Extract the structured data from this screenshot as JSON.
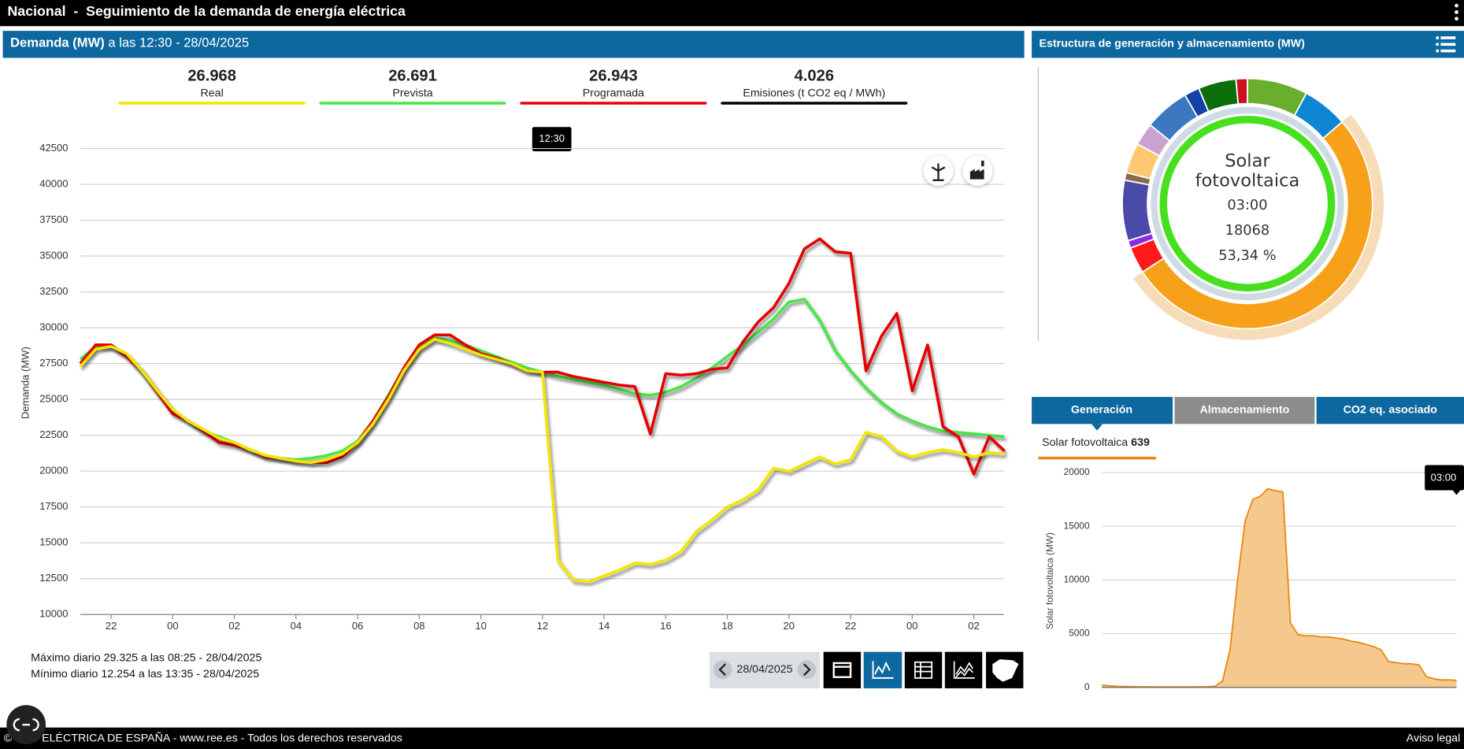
{
  "header": {
    "title": "Nacional  -  Seguimiento de la demanda de energía eléctrica"
  },
  "demand_panel": {
    "title": "Demanda (MW)",
    "subtitle": "a las 12:30 - 28/04/2025",
    "tooltip": "12:30"
  },
  "emissions": {
    "value": "4.026",
    "label": "Emisiones (t CO2 eq / MWh)",
    "color": "#000000"
  },
  "stats": [
    "Máximo diario 29.325 a las 08:25 - 28/04/2025",
    "Mínimo diario 12.254 a las 13:35 - 28/04/2025"
  ],
  "date_picker": "28/04/2025",
  "structure_panel": {
    "title": "Estructura de generación y almacenamiento (MW)"
  },
  "tabs": [
    "Generación",
    "Almacenamiento",
    "CO2 eq. asociado"
  ],
  "selected": {
    "label": "Solar fotovoltaica",
    "value": "639",
    "tooltip": "03:00"
  },
  "footer": {
    "left": "© RED ELÉCTRICA DE ESPAÑA - www.ree.es - Todos los derechos reservados",
    "right": "Aviso legal"
  },
  "chart_data": [
    {
      "type": "line",
      "ylabel": "Demanda (MW)",
      "x": [
        21,
        21.5,
        22,
        22.5,
        23,
        23.5,
        24,
        24.5,
        25,
        25.5,
        26,
        26.5,
        27,
        27.5,
        28,
        28.5,
        29,
        29.5,
        30,
        30.5,
        31,
        31.5,
        32,
        32.5,
        33,
        33.5,
        34,
        34.5,
        35,
        35.5,
        36,
        36.5,
        37,
        37.5,
        38,
        38.5,
        39,
        39.5,
        40,
        40.5,
        41,
        41.5,
        42,
        42.5,
        43,
        43.5,
        44,
        44.5,
        45,
        45.5,
        46,
        46.5,
        47,
        47.5,
        48,
        48.5,
        49,
        49.5,
        50,
        50.5,
        51
      ],
      "xlim": [
        21,
        51
      ],
      "xticks": [
        22,
        {
          "value": 24,
          "label": "00"
        },
        {
          "value": 26,
          "label": "02"
        },
        {
          "value": 28,
          "label": "04"
        },
        {
          "value": 30,
          "label": "06"
        },
        {
          "value": 32,
          "label": "08"
        },
        {
          "value": 34,
          "label": "10"
        },
        {
          "value": 36,
          "label": "12"
        },
        {
          "value": 38,
          "label": "14"
        },
        {
          "value": 40,
          "label": "16"
        },
        {
          "value": 42,
          "label": "18"
        },
        {
          "value": 44,
          "label": "20"
        },
        {
          "value": 46,
          "label": "22"
        },
        {
          "value": 48,
          "label": "00"
        },
        {
          "value": 50,
          "label": "02"
        }
      ],
      "ylim": [
        10000,
        42500
      ],
      "yticks": [
        10000,
        12500,
        15000,
        17500,
        20000,
        22500,
        25000,
        27500,
        30000,
        32500,
        35000,
        37500,
        40000,
        42500
      ],
      "grid": true,
      "series": [
        {
          "name": "Prevista",
          "current": "26.691",
          "color": "#45e645",
          "values": [
            27800,
            28700,
            28700,
            28100,
            26900,
            25500,
            24200,
            23500,
            22800,
            22400,
            22000,
            21500,
            21100,
            20900,
            20800,
            20900,
            21100,
            21400,
            22100,
            23500,
            25300,
            27200,
            28600,
            29300,
            29100,
            28800,
            28400,
            28000,
            27600,
            27200,
            26900,
            26600,
            26400,
            26200,
            26000,
            25700,
            25400,
            25300,
            25500,
            25900,
            26500,
            27200,
            28000,
            28800,
            29700,
            30600,
            31800,
            32000,
            30500,
            28400,
            27000,
            25800,
            24800,
            24000,
            23500,
            23100,
            22800,
            22700,
            22600,
            22500,
            22400
          ]
        },
        {
          "name": "Programada",
          "current": "26.943",
          "color": "#e60000",
          "values": [
            27500,
            28800,
            28800,
            28000,
            27000,
            25500,
            24000,
            23500,
            22800,
            22000,
            21800,
            21500,
            21000,
            20900,
            20700,
            20600,
            20600,
            21000,
            22000,
            23500,
            25200,
            27200,
            28800,
            29500,
            29500,
            28800,
            28200,
            27900,
            27500,
            27000,
            26900,
            26900,
            26600,
            26400,
            26200,
            26000,
            25900,
            22600,
            26800,
            26700,
            26800,
            27100,
            27200,
            29000,
            30400,
            31400,
            33100,
            35500,
            36200,
            35300,
            35200,
            27000,
            29400,
            31000,
            25600,
            28800,
            23100,
            22400,
            19800,
            22400,
            21400
          ]
        },
        {
          "name": "Real",
          "current": "26.968",
          "color": "#f2e600",
          "values": [
            27300,
            28500,
            28700,
            28200,
            27000,
            25600,
            24300,
            23500,
            22900,
            22300,
            22000,
            21500,
            21100,
            20900,
            20700,
            20600,
            20800,
            21200,
            22000,
            23300,
            25000,
            27000,
            28500,
            29200,
            28900,
            28500,
            28100,
            27800,
            27500,
            27000,
            26900,
            13800,
            12400,
            12300,
            12700,
            13100,
            13600,
            13500,
            13800,
            14400,
            15800,
            16600,
            17500,
            18000,
            18700,
            20200,
            20000,
            20500,
            21000,
            20500,
            20800,
            22700,
            22400,
            21400,
            21000,
            21300,
            21500,
            21300,
            21000,
            21300,
            21200
          ]
        }
      ],
      "kpi_order": [
        2,
        0,
        1
      ]
    },
    {
      "type": "pie",
      "center": {
        "name_lines": [
          "Solar",
          "fotovoltaica"
        ],
        "time": "03:00",
        "value": "18068",
        "share": "53,34 %"
      },
      "values": [
        8,
        6,
        53.34,
        3.5,
        1,
        8,
        1,
        4,
        3,
        6,
        2,
        5,
        1.5
      ],
      "colors": [
        "#6aae2e",
        "#0e86d4",
        "#f7a11a",
        "#ff1a1a",
        "#8a2be2",
        "#4a4aa8",
        "#8a6a4a",
        "#ffc870",
        "#c9a2d0",
        "#3c78c0",
        "#1540a8",
        "#0a6e0a",
        "#cc1020"
      ],
      "highlight_index": 2,
      "highlight_color": "#f6dcb8",
      "ring_color": "#cfdbe4",
      "selected_color": "#47e01e"
    },
    {
      "type": "area",
      "ylabel": "Solar fotovoltaica (MW)",
      "values": [
        200,
        150,
        100,
        80,
        60,
        50,
        50,
        40,
        40,
        40,
        40,
        40,
        40,
        50,
        60,
        100,
        600,
        3500,
        10000,
        15500,
        17500,
        17800,
        18500,
        18300,
        18200,
        6000,
        4900,
        4800,
        4800,
        4700,
        4700,
        4600,
        4500,
        4300,
        4200,
        4000,
        3800,
        3500,
        2400,
        2300,
        2200,
        2200,
        2100,
        1000,
        800,
        700,
        700,
        650
      ],
      "ylim": [
        0,
        20000
      ],
      "yticks": [
        0,
        5000,
        10000,
        15000,
        20000
      ],
      "grid": true,
      "color": "#e8860e",
      "fill": "#f5c98e"
    }
  ]
}
